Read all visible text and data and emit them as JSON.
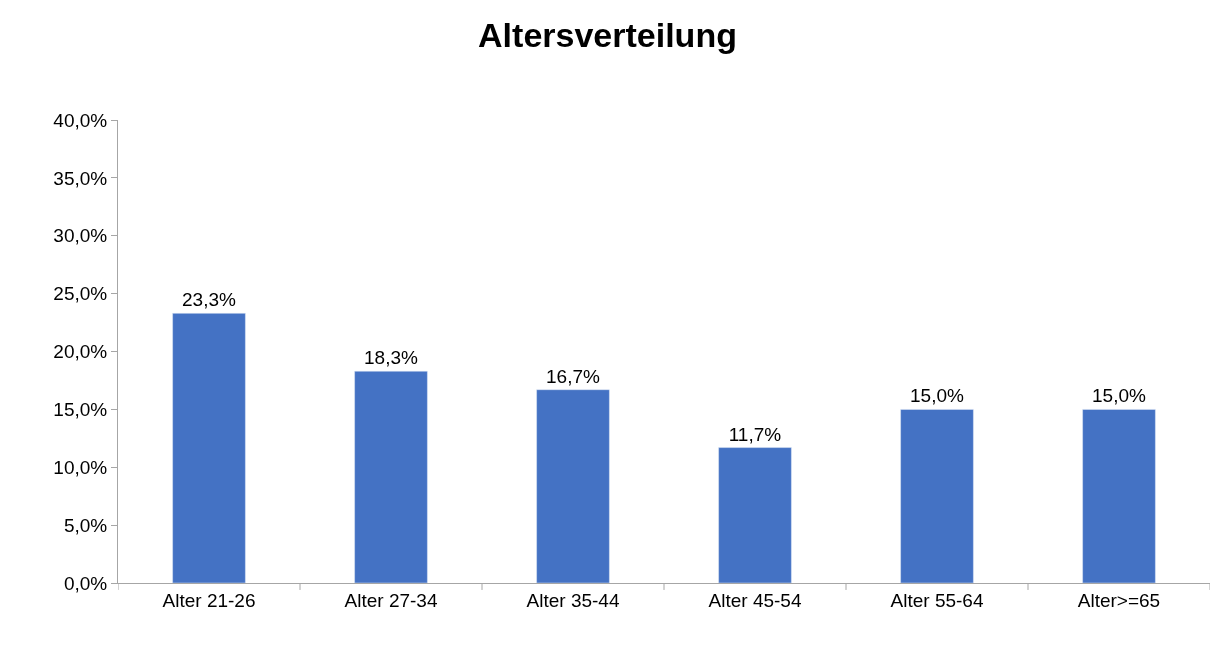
{
  "chart_data": {
    "type": "bar",
    "title": "Altersverteilung",
    "categories": [
      "Alter 21-26",
      "Alter 27-34",
      "Alter 35-44",
      "Alter 45-54",
      "Alter 55-64",
      "Alter>=65"
    ],
    "values": [
      23.3,
      18.3,
      16.7,
      11.7,
      15.0,
      15.0
    ],
    "value_labels": [
      "23,3%",
      "18,3%",
      "16,7%",
      "11,7%",
      "15,0%",
      "15,0%"
    ],
    "color": "#4472c4",
    "ylim": [
      0,
      40
    ],
    "yticks": [
      {
        "value": 0,
        "label": "0,0%"
      },
      {
        "value": 5,
        "label": "5,0%"
      },
      {
        "value": 10,
        "label": "10,0%"
      },
      {
        "value": 15,
        "label": "15,0%"
      },
      {
        "value": 20,
        "label": "20,0%"
      },
      {
        "value": 25,
        "label": "25,0%"
      },
      {
        "value": 30,
        "label": "30,0%"
      },
      {
        "value": 35,
        "label": "35,0%"
      },
      {
        "value": 40,
        "label": "40,0%"
      }
    ],
    "grid": false,
    "legend": false
  }
}
